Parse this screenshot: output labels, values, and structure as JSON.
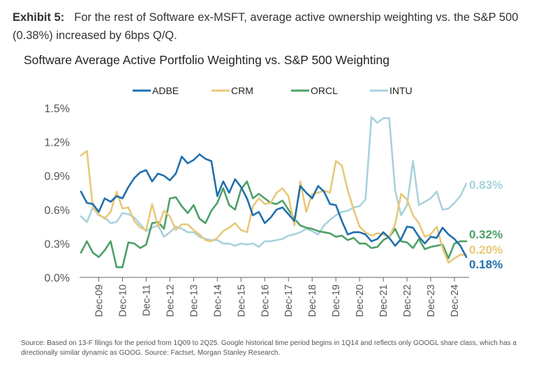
{
  "exhibit": {
    "label": "Exhibit 5:",
    "text": "For the rest of Software ex-MSFT, average active ownership weighting vs. the S&P 500 (0.38%) increased by 6bps Q/Q."
  },
  "source": "Source: Based on 13-F filings for the period from 1Q09 to 2Q25. Google historical time period begins in 1Q14 and reflects only GOOGL share class, which has a directionally similar dynamic as GOOG. Source: Factset, Morgan Stanley Research.",
  "chart_data": {
    "type": "line",
    "title": "Software Average Active Portfolio Weighting vs. S&P 500 Weighting",
    "xlabel": "",
    "ylabel": "",
    "y_tick_labels": [
      "0.0%",
      "0.3%",
      "0.6%",
      "0.9%",
      "1.2%",
      "1.5%"
    ],
    "y_ticks": [
      0,
      0.3,
      0.6,
      0.9,
      1.2,
      1.5
    ],
    "ylim": [
      0,
      1.55
    ],
    "x_tick_labels": [
      "Dec-09",
      "Dec-10",
      "Dec-11",
      "Dec-12",
      "Dec-13",
      "Dec-14",
      "Dec-15",
      "Dec-16",
      "Dec-17",
      "Dec-18",
      "Dec-19",
      "Dec-20",
      "Dec-21",
      "Dec-22",
      "Dec-23",
      "Dec-24"
    ],
    "x_start": "1Q09",
    "x_end": "2Q25",
    "num_quarters": 66,
    "legend_position": "top",
    "grid": false,
    "series": [
      {
        "name": "ADBE",
        "color": "#1F6FAE",
        "end_label": "0.18%",
        "values": [
          0.76,
          0.66,
          0.65,
          0.58,
          0.7,
          0.67,
          0.72,
          0.7,
          0.8,
          0.88,
          0.93,
          0.95,
          0.85,
          0.92,
          0.9,
          0.86,
          0.92,
          1.07,
          1.01,
          1.04,
          1.09,
          1.05,
          1.03,
          0.72,
          0.85,
          0.75,
          0.87,
          0.8,
          0.7,
          0.55,
          0.58,
          0.48,
          0.53,
          0.6,
          0.62,
          0.56,
          0.5,
          0.81,
          0.75,
          0.7,
          0.81,
          0.76,
          0.65,
          0.64,
          0.5,
          0.38,
          0.4,
          0.4,
          0.38,
          0.32,
          0.34,
          0.4,
          0.35,
          0.28,
          0.34,
          0.45,
          0.44,
          0.36,
          0.3,
          0.36,
          0.35,
          0.44,
          0.38,
          0.34,
          0.28,
          0.18
        ]
      },
      {
        "name": "CRM",
        "color": "#E8C878",
        "end_label": "0.20%",
        "values": [
          1.08,
          1.12,
          0.62,
          0.56,
          0.52,
          0.58,
          0.76,
          0.61,
          0.62,
          0.5,
          0.44,
          0.42,
          0.65,
          0.45,
          0.59,
          0.54,
          0.42,
          0.47,
          0.47,
          0.42,
          0.38,
          0.33,
          0.32,
          0.35,
          0.41,
          0.44,
          0.48,
          0.42,
          0.4,
          0.63,
          0.7,
          0.65,
          0.66,
          0.75,
          0.79,
          0.72,
          0.46,
          0.85,
          0.58,
          0.74,
          0.75,
          0.77,
          0.75,
          1.03,
          0.99,
          0.77,
          0.6,
          0.45,
          0.4,
          0.37,
          0.39,
          0.38,
          0.36,
          0.47,
          0.74,
          0.69,
          0.55,
          0.48,
          0.36,
          0.38,
          0.45,
          0.26,
          0.13,
          0.17,
          0.2,
          0.2
        ]
      },
      {
        "name": "ORCL",
        "color": "#4CA066",
        "end_label": "0.32%",
        "values": [
          0.22,
          0.32,
          0.22,
          0.18,
          0.24,
          0.32,
          0.09,
          0.09,
          0.31,
          0.3,
          0.26,
          0.29,
          0.48,
          0.49,
          0.43,
          0.7,
          0.71,
          0.63,
          0.57,
          0.64,
          0.52,
          0.48,
          0.59,
          0.66,
          0.79,
          0.64,
          0.6,
          0.78,
          0.85,
          0.7,
          0.74,
          0.7,
          0.66,
          0.65,
          0.68,
          0.6,
          0.52,
          0.46,
          0.44,
          0.43,
          0.41,
          0.4,
          0.39,
          0.36,
          0.37,
          0.33,
          0.35,
          0.3,
          0.3,
          0.26,
          0.27,
          0.33,
          0.36,
          0.43,
          0.32,
          0.31,
          0.26,
          0.34,
          0.25,
          0.27,
          0.28,
          0.29,
          0.17,
          0.3,
          0.32,
          0.32
        ]
      },
      {
        "name": "INTU",
        "color": "#A8D2DC",
        "end_label": "0.83%",
        "values": [
          0.54,
          0.49,
          0.62,
          0.55,
          0.53,
          0.48,
          0.49,
          0.57,
          0.56,
          0.53,
          0.47,
          0.41,
          0.44,
          0.46,
          0.36,
          0.4,
          0.45,
          0.43,
          0.4,
          0.4,
          0.36,
          0.34,
          0.33,
          0.33,
          0.3,
          0.3,
          0.28,
          0.3,
          0.29,
          0.3,
          0.27,
          0.32,
          0.32,
          0.33,
          0.34,
          0.37,
          0.38,
          0.4,
          0.43,
          0.41,
          0.38,
          0.46,
          0.51,
          0.55,
          0.58,
          0.59,
          0.62,
          0.63,
          0.69,
          1.42,
          1.37,
          1.41,
          1.41,
          0.77,
          0.55,
          0.64,
          1.03,
          0.64,
          0.67,
          0.7,
          0.76,
          0.6,
          0.61,
          0.66,
          0.72,
          0.83
        ]
      }
    ]
  }
}
